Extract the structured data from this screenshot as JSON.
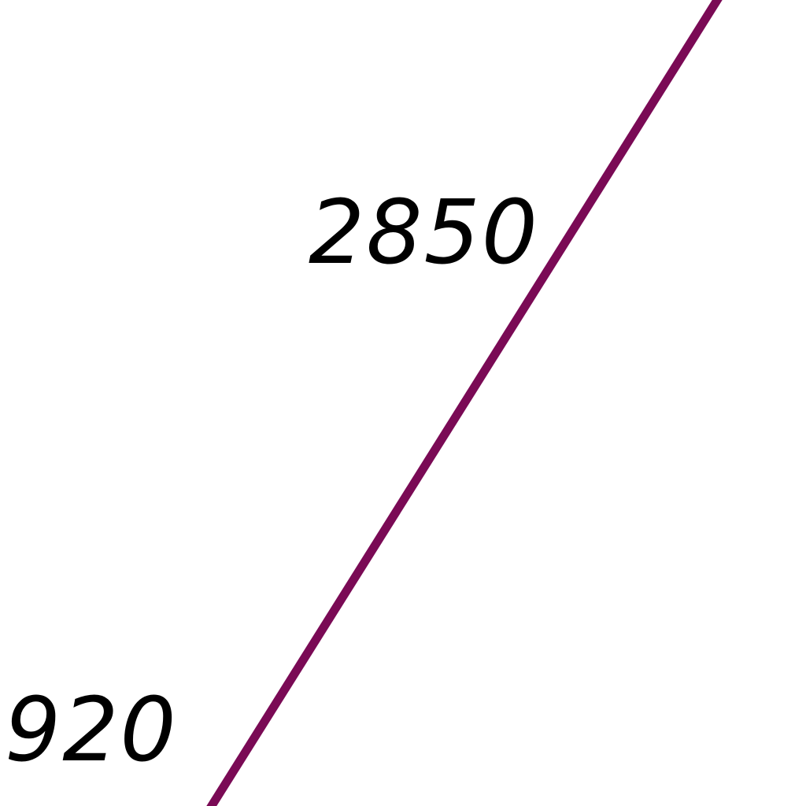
{
  "map": {
    "line_color": "#7a0a55",
    "labels": {
      "top": "2850",
      "bottom": "920"
    }
  }
}
